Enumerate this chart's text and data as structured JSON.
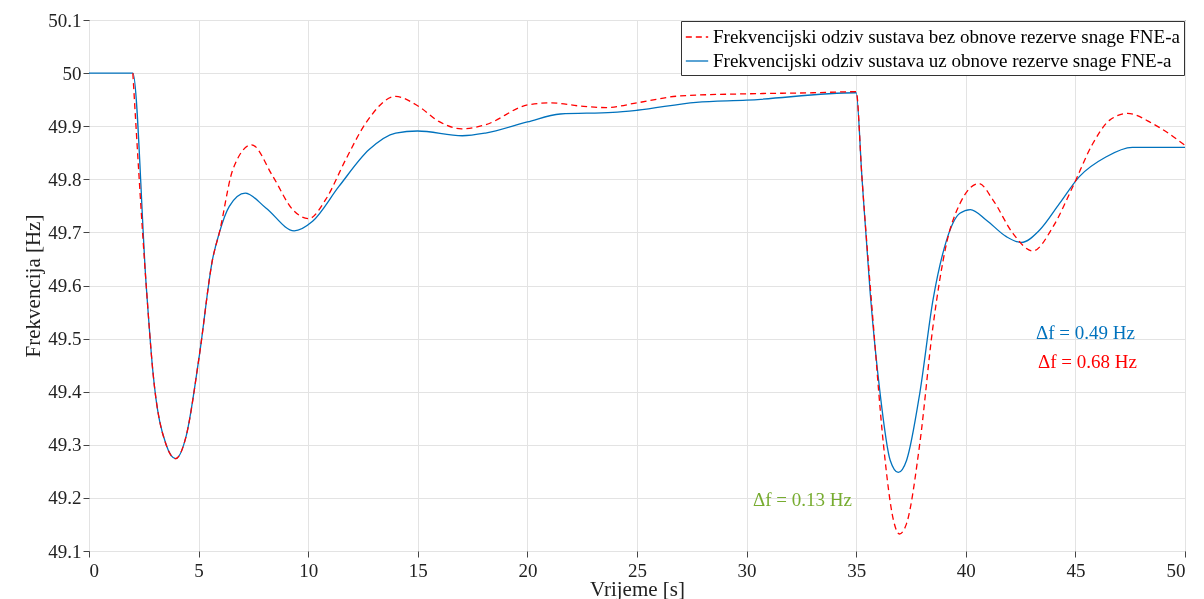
{
  "chart_data": {
    "type": "line",
    "xlabel": "Vrijeme [s]",
    "ylabel": "Frekvencija [Hz]",
    "xlim": [
      0,
      50
    ],
    "xticks": [
      0,
      5,
      10,
      15,
      20,
      25,
      30,
      35,
      40,
      45,
      50
    ],
    "ylim": [
      49.1,
      50.1
    ],
    "yticks": [
      49.1,
      49.2,
      49.3,
      49.4,
      49.5,
      49.6,
      49.7,
      49.8,
      49.9,
      50,
      50.1
    ],
    "grid": true,
    "legend": "top right",
    "series": [
      {
        "name": "Frekvencijski odziv sustava bez obnove rezerve snage FNE-a",
        "color": "#ff0000",
        "line_style": "dashed",
        "x": [
          2,
          2.61,
          2.91,
          3.52,
          3.95,
          4.43,
          5.04,
          5.64,
          5.95,
          6.56,
          7.42,
          8.38,
          9.29,
          10.02,
          10.8,
          11.71,
          12.63,
          13.99,
          15.05,
          15.96,
          17.0,
          18.1,
          20,
          21.06,
          22.4,
          23.6,
          25,
          26.97,
          30,
          33.03,
          35,
          35.26,
          35.79,
          36.24,
          36.7,
          36.97,
          37.3,
          37.9,
          38.5,
          39.12,
          39.73,
          40.6,
          41.24,
          42.15,
          43.06,
          43.97,
          44.88,
          45.79,
          46.55,
          47.38,
          48.52,
          50
        ],
        "values": [
          50,
          49.6,
          49.44,
          49.3,
          49.274,
          49.316,
          49.47,
          49.65,
          49.7,
          49.818,
          49.865,
          49.806,
          49.743,
          49.726,
          49.762,
          49.837,
          49.906,
          49.956,
          49.937,
          49.909,
          49.895,
          49.903,
          49.94,
          49.944,
          49.938,
          49.935,
          49.944,
          49.957,
          49.961,
          49.963,
          49.965,
          49.805,
          49.522,
          49.302,
          49.158,
          49.132,
          49.152,
          49.302,
          49.522,
          49.679,
          49.754,
          49.792,
          49.761,
          49.698,
          49.665,
          49.71,
          49.786,
          49.867,
          49.911,
          49.924,
          49.905,
          49.864
        ]
      },
      {
        "name": "Frekvencijski odziv sustava uz obnove rezerve snage FNE-a",
        "color": "#0072bd",
        "line_style": "solid",
        "x": [
          0,
          2,
          2.61,
          2.91,
          3.52,
          3.95,
          4.43,
          5.04,
          5.64,
          5.95,
          6.4,
          7.13,
          8.07,
          9.36,
          10.2,
          11.41,
          12.78,
          13.99,
          14.99,
          17.03,
          18.09,
          20,
          21.5,
          23.9,
          25,
          27.7,
          30,
          35,
          35.26,
          35.64,
          36.09,
          36.55,
          36.92,
          37.3,
          37.9,
          38.5,
          39.12,
          39.73,
          40.21,
          40.94,
          41.85,
          42.53,
          43.36,
          44.27,
          45.18,
          46.39,
          47.6,
          50
        ],
        "values": [
          50,
          50,
          49.6,
          49.44,
          49.3,
          49.274,
          49.316,
          49.47,
          49.65,
          49.7,
          49.749,
          49.774,
          49.746,
          49.703,
          49.721,
          49.787,
          49.856,
          49.887,
          49.891,
          49.882,
          49.887,
          49.908,
          49.923,
          49.926,
          49.93,
          49.945,
          49.949,
          49.963,
          49.805,
          49.585,
          49.397,
          49.271,
          49.248,
          49.271,
          49.397,
          49.572,
          49.685,
          49.736,
          49.743,
          49.723,
          49.692,
          49.681,
          49.704,
          49.754,
          49.805,
          49.842,
          49.86,
          49.86
        ]
      }
    ],
    "annotations": [
      "Δf = 0.68 Hz",
      "Δf = 0.49 Hz",
      "Δf = 0.13 Hz"
    ]
  }
}
